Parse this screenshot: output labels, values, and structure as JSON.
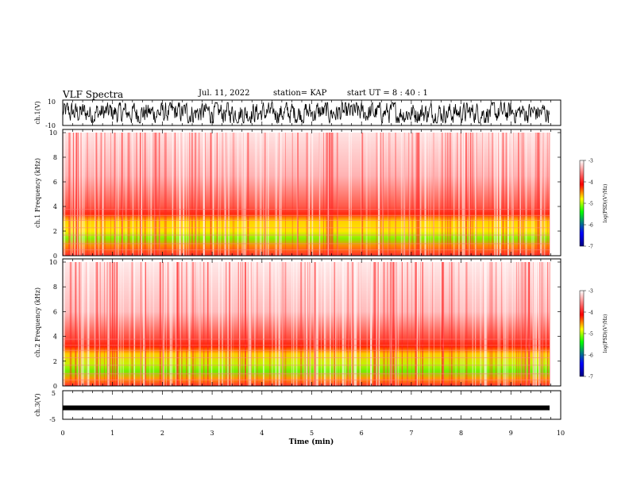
{
  "header": {
    "title": "VLF Spectra",
    "date": "Jul. 11, 2022",
    "station": "station= KAP",
    "start": "start UT =  8 : 40 : 1"
  },
  "chart_data": [
    {
      "type": "line",
      "panel": "ch1-waveform",
      "ylabel": "ch.1(V)",
      "ylim": [
        -10,
        10
      ],
      "yticks": [
        "10",
        "-10"
      ],
      "description_level": "dense noisy voltage trace oscillating roughly between -8 and 8 V"
    },
    {
      "type": "heatmap",
      "panel": "ch1-spectrogram",
      "ylabel": "ch.1 Frequency (kHz)",
      "ylim": [
        0,
        10
      ],
      "yticks": [
        "0",
        "2",
        "4",
        "6",
        "8",
        "10"
      ],
      "colorbar": {
        "label": "log(PSD)(V²/Hz)",
        "range": [
          -7,
          -3
        ],
        "ticks": [
          "-3",
          "-4",
          "-5",
          "-6",
          "-7"
        ]
      }
    },
    {
      "type": "heatmap",
      "panel": "ch2-spectrogram",
      "ylabel": "ch.2 Frequency (kHz)",
      "ylim": [
        0,
        10
      ],
      "yticks": [
        "0",
        "2",
        "4",
        "6",
        "8",
        "10"
      ],
      "colorbar": {
        "label": "log(PSD)(V²/Hz)",
        "range": [
          -7,
          -3
        ],
        "ticks": [
          "-3",
          "-4",
          "-5",
          "-6",
          "-7"
        ]
      }
    },
    {
      "type": "line",
      "panel": "ch3-waveform",
      "ylabel": "ch.3(V)",
      "ylim": [
        -5,
        5
      ],
      "yticks": [
        "5",
        "-5"
      ],
      "level": -1
    }
  ],
  "xaxis": {
    "label": "Time (min)",
    "range": [
      0,
      10
    ],
    "ticks": [
      "0",
      "1",
      "2",
      "3",
      "4",
      "5",
      "6",
      "7",
      "8",
      "9",
      "10"
    ]
  },
  "colors": {
    "scale": [
      "#000080",
      "#0000ff",
      "#00ff00",
      "#ffff00",
      "#ff0000",
      "#ffffff"
    ]
  }
}
